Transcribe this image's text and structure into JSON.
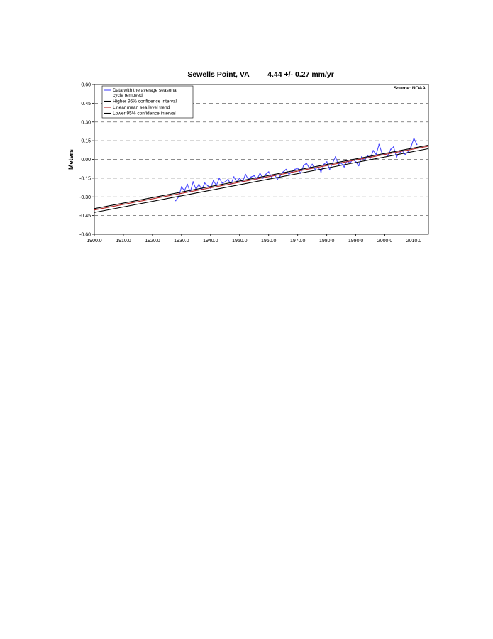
{
  "chart_data": {
    "type": "line",
    "title": "Sewells Point, VA",
    "subtitle": "4.44 +/- 0.27 mm/yr",
    "source": "Source: NOAA",
    "ylabel": "Meters",
    "xlabel": "",
    "xlim": [
      1900,
      2015
    ],
    "ylim": [
      -0.6,
      0.6
    ],
    "x_ticks": [
      1900,
      1910,
      1920,
      1930,
      1940,
      1950,
      1960,
      1970,
      1980,
      1990,
      2000,
      2010
    ],
    "x_tick_labels": [
      "1900.0",
      "1910.0",
      "1920.0",
      "1930.0",
      "1940.0",
      "1950.0",
      "1960.0",
      "1970.0",
      "1980.0",
      "1990.0",
      "2000.0",
      "2010.0"
    ],
    "y_ticks": [
      0.6,
      0.45,
      0.3,
      0.15,
      0.0,
      -0.15,
      -0.3,
      -0.45,
      -0.6
    ],
    "y_tick_labels": [
      "0.60",
      "0.45",
      "0.30",
      "0.15",
      "0.00",
      "-0.15",
      "-0.30",
      "-0.45",
      "-0.60"
    ],
    "grid": "horizontal dashed",
    "legend_position": "top-left",
    "series": [
      {
        "name": "Data with the average seasonal cycle removed",
        "color": "#4b4bff",
        "x": [
          1928,
          1929,
          1930,
          1931,
          1932,
          1933,
          1934,
          1935,
          1936,
          1937,
          1938,
          1939,
          1940,
          1941,
          1942,
          1943,
          1944,
          1945,
          1946,
          1947,
          1948,
          1949,
          1950,
          1951,
          1952,
          1953,
          1954,
          1955,
          1956,
          1957,
          1958,
          1959,
          1960,
          1961,
          1962,
          1963,
          1964,
          1965,
          1966,
          1967,
          1968,
          1969,
          1970,
          1971,
          1972,
          1973,
          1974,
          1975,
          1976,
          1977,
          1978,
          1979,
          1980,
          1981,
          1982,
          1983,
          1984,
          1985,
          1986,
          1987,
          1988,
          1989,
          1990,
          1991,
          1992,
          1993,
          1994,
          1995,
          1996,
          1997,
          1998,
          1999,
          2000,
          2001,
          2002,
          2003,
          2004,
          2005,
          2006,
          2007,
          2008,
          2009,
          2010,
          2011
        ],
        "y": [
          -0.33,
          -0.3,
          -0.22,
          -0.25,
          -0.2,
          -0.26,
          -0.18,
          -0.24,
          -0.2,
          -0.24,
          -0.19,
          -0.21,
          -0.23,
          -0.17,
          -0.21,
          -0.15,
          -0.19,
          -0.18,
          -0.16,
          -0.2,
          -0.14,
          -0.18,
          -0.15,
          -0.18,
          -0.12,
          -0.16,
          -0.14,
          -0.13,
          -0.16,
          -0.11,
          -0.15,
          -0.12,
          -0.1,
          -0.14,
          -0.12,
          -0.16,
          -0.13,
          -0.1,
          -0.08,
          -0.12,
          -0.1,
          -0.08,
          -0.07,
          -0.11,
          -0.05,
          -0.03,
          -0.07,
          -0.04,
          -0.08,
          -0.06,
          -0.1,
          -0.04,
          -0.02,
          -0.08,
          -0.03,
          0.02,
          -0.04,
          -0.03,
          -0.06,
          -0.01,
          -0.03,
          0.0,
          -0.02,
          -0.05,
          0.02,
          -0.01,
          0.03,
          0.01,
          0.07,
          0.04,
          0.12,
          0.05,
          0.04,
          0.03,
          0.08,
          0.1,
          0.02,
          0.05,
          0.07,
          0.04,
          0.06,
          0.1,
          0.17,
          0.12
        ]
      },
      {
        "name": "Higher 95% confidence interval",
        "color": "#000000",
        "x": [
          1900,
          2015
        ],
        "y": [
          -0.394,
          0.114
        ]
      },
      {
        "name": "Linear mean sea level trend",
        "color": "#b22222",
        "x": [
          1900,
          2015
        ],
        "y": [
          -0.405,
          0.106
        ]
      },
      {
        "name": "Lower 95% confidence interval",
        "color": "#000000",
        "x": [
          1900,
          2015
        ],
        "y": [
          -0.425,
          0.086
        ]
      }
    ]
  }
}
